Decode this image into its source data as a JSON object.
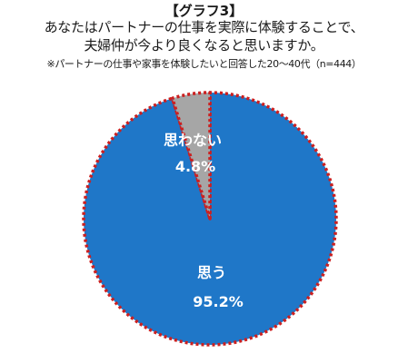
{
  "chart_data": {
    "type": "pie",
    "title_tag": "【グラフ3】",
    "title_lines": [
      "あなたはパートナーの仕事を実際に体験することで、",
      "夫婦仲が今より良くなると思いますか。"
    ],
    "subtitle": "※パートナーの仕事や家事を体験したいと回答した20～40代（n=444）",
    "slices": [
      {
        "label": "思う",
        "value": 95.2,
        "value_label": "95.2%",
        "color": "#1f77c8"
      },
      {
        "label": "思わない",
        "value": 4.8,
        "value_label": "4.8%",
        "color": "#a6a6a6"
      }
    ],
    "border_color": "#cc1f1f",
    "border_style": "dotted",
    "legend": "none"
  }
}
